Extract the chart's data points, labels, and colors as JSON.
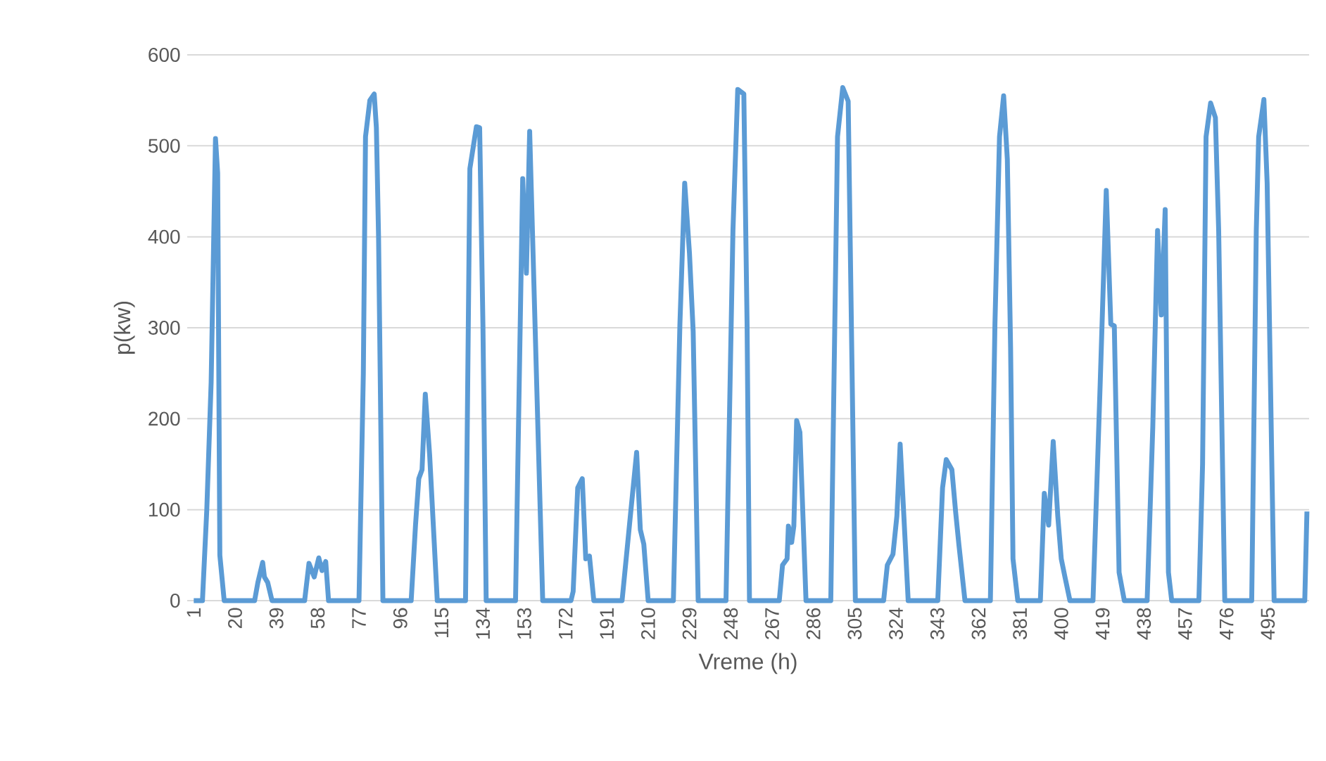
{
  "chart_data": {
    "type": "line",
    "xlabel": "Vreme (h)",
    "ylabel": "p(kw)",
    "x": [
      1,
      5,
      7,
      9,
      11,
      12,
      13,
      15,
      29,
      30.5,
      32.7,
      33.5,
      35,
      37,
      52,
      54,
      56.4,
      58.5,
      60,
      61.7,
      63,
      77,
      79,
      80,
      82,
      84,
      85,
      86,
      88,
      101,
      103,
      104.5,
      106,
      107.5,
      109.5,
      113,
      126,
      128,
      131,
      132.5,
      134,
      135.5,
      149,
      152.3,
      154,
      155.5,
      161.5,
      174.5,
      175.5,
      177.6,
      179.7,
      181.3,
      183,
      185,
      198,
      201.4,
      204.7,
      206.4,
      208,
      210,
      221.6,
      224.6,
      226.8,
      229,
      230.7,
      233,
      245.8,
      249,
      251.2,
      254,
      255.5,
      256.6,
      270.3,
      271.8,
      273.9,
      274.5,
      276,
      277,
      278.3,
      279.8,
      282.6,
      294,
      297.1,
      299.5,
      302,
      305.3,
      318.3,
      320,
      322.6,
      324.4,
      325.9,
      327.5,
      329.6,
      343.2,
      345.4,
      347.1,
      349.7,
      351.4,
      352.9,
      355.7,
      367.4,
      369.5,
      371.6,
      373.5,
      375.2,
      376.7,
      377.8,
      380,
      390.4,
      392.2,
      394.2,
      396.3,
      398.4,
      400,
      401.7,
      404,
      414.6,
      417.9,
      420.7,
      422.8,
      424.4,
      426.6,
      429,
      439.5,
      442.1,
      444.3,
      446,
      447.8,
      449.3,
      450.8,
      463.3,
      465,
      466.6,
      468.7,
      470.9,
      472.4,
      475.2,
      487.6,
      489.7,
      490.8,
      493.2,
      494.7,
      497.9,
      512,
      513
    ],
    "values": [
      0,
      0,
      100,
      240,
      508,
      470,
      50,
      0,
      0,
      20,
      42,
      26,
      20,
      0,
      0,
      41,
      26,
      47,
      33,
      43,
      0,
      0,
      250,
      510,
      550,
      557,
      520,
      400,
      0,
      0,
      83,
      134,
      144,
      227,
      160,
      0,
      0,
      475,
      521,
      520,
      304,
      0,
      0,
      464,
      360,
      516,
      0,
      0,
      10,
      124,
      134,
      46,
      49,
      0,
      0,
      83,
      163,
      78,
      62,
      0,
      0,
      304,
      459,
      382,
      296,
      0,
      0,
      407,
      562,
      557,
      304,
      0,
      0,
      39,
      46,
      82,
      64,
      82,
      198,
      185,
      0,
      0,
      510,
      564,
      549,
      0,
      0,
      39,
      51,
      93,
      172,
      98,
      0,
      0,
      124,
      155,
      144,
      98,
      62,
      0,
      0,
      304,
      510,
      555,
      485,
      278,
      46,
      0,
      0,
      118,
      83,
      175,
      93,
      46,
      26,
      0,
      0,
      238,
      451,
      304,
      302,
      31,
      0,
      0,
      191,
      407,
      314,
      430,
      31,
      0,
      0,
      150,
      510,
      547,
      531,
      407,
      0,
      0,
      407,
      510,
      551,
      459,
      0,
      0,
      98
    ],
    "color": "#5b9bd5",
    "xlim": [
      -2,
      514
    ],
    "ylim": [
      0,
      600
    ],
    "xticks": [
      1,
      20,
      39,
      58,
      77,
      96,
      115,
      134,
      153,
      172,
      191,
      210,
      229,
      248,
      267,
      286,
      305,
      324,
      343,
      362,
      381,
      400,
      419,
      438,
      457,
      476,
      495
    ],
    "yticks": [
      0,
      100,
      200,
      300,
      400,
      500,
      600
    ],
    "grid": "y",
    "marker": "none",
    "line_style": "solid"
  }
}
